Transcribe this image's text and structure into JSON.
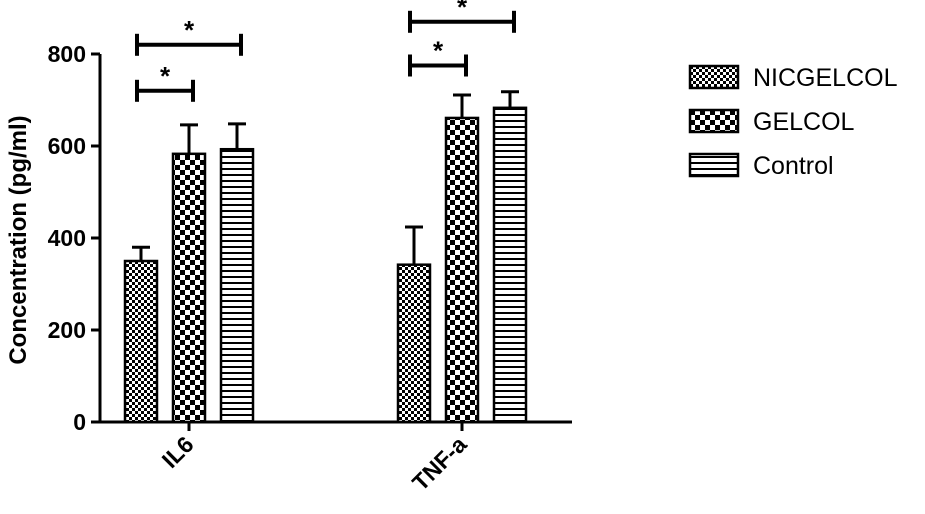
{
  "chart_data": {
    "type": "bar",
    "ylabel": "Concentration (pg/ml)",
    "ylim": [
      0,
      800
    ],
    "yticks": [
      0,
      200,
      400,
      600,
      800
    ],
    "categories": [
      "IL6",
      "TNF-a"
    ],
    "series": [
      {
        "name": "NICGELCOL",
        "values": [
          350,
          342
        ],
        "errors": [
          30,
          82
        ],
        "pattern": "fine-checker"
      },
      {
        "name": "GELCOL",
        "values": [
          583,
          661
        ],
        "errors": [
          63,
          50
        ],
        "pattern": "checkerboard"
      },
      {
        "name": "Control",
        "values": [
          593,
          683
        ],
        "errors": [
          55,
          35
        ],
        "pattern": "horizontal-stripes"
      }
    ],
    "significance": [
      {
        "category": "IL6",
        "from_series": 0,
        "to_series": 1,
        "y": 720,
        "label": "*"
      },
      {
        "category": "IL6",
        "from_series": 0,
        "to_series": 2,
        "y": 820,
        "label": "*"
      },
      {
        "category": "TNF-a",
        "from_series": 0,
        "to_series": 1,
        "y": 775,
        "label": "*"
      },
      {
        "category": "TNF-a",
        "from_series": 0,
        "to_series": 2,
        "y": 870,
        "label": "*"
      }
    ],
    "legend_position": "right",
    "grid": false
  }
}
